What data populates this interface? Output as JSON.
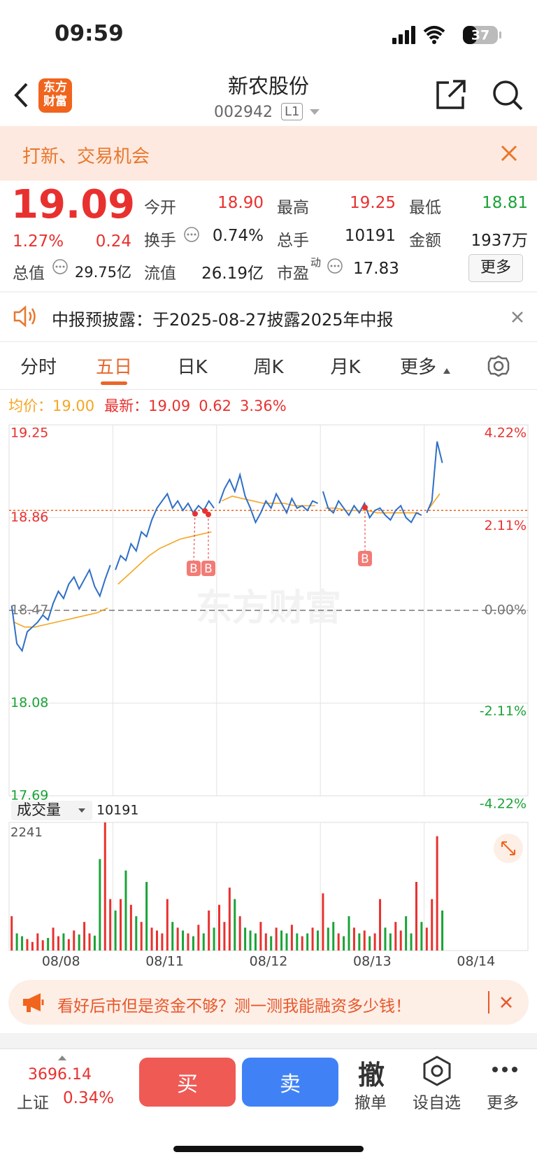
{
  "status_bar": {
    "time": "09:59",
    "battery": "37"
  },
  "header": {
    "logo": [
      "东方",
      "财富"
    ],
    "title": "新农股份",
    "code": "002942",
    "level": "L1"
  },
  "banner": {
    "text": "打新、交易机会"
  },
  "quote": {
    "price": "19.09",
    "change_pct": "1.27%",
    "change": "0.24",
    "fields": [
      {
        "label": "今开",
        "value": "18.90"
      },
      {
        "label": "最高",
        "value": "19.25"
      },
      {
        "label": "最低",
        "value": "18.81"
      },
      {
        "label": "换手",
        "value": "0.74%"
      },
      {
        "label": "总手",
        "value": "10191"
      },
      {
        "label": "金额",
        "value": "1937万"
      },
      {
        "label": "总值",
        "value": "29.75亿"
      },
      {
        "label": "流值",
        "value": "26.19亿"
      },
      {
        "label": "市盈",
        "sup": "动",
        "value": "17.83"
      }
    ],
    "more": "更多"
  },
  "notice": {
    "text": "中报预披露：于2025-08-27披露2025年中报"
  },
  "tabs": {
    "items": [
      "分时",
      "五日",
      "日K",
      "周K",
      "月K",
      "更多"
    ],
    "active": 1
  },
  "legend": {
    "avg": "19.00",
    "last": "19.09",
    "change": "0.62",
    "change_pct": "3.36%"
  },
  "chart_data": [
    {
      "type": "line",
      "categories": [
        "08/08",
        "08/11",
        "08/12",
        "08/13",
        "08/14"
      ],
      "ylim": [
        17.69,
        19.25
      ],
      "yticks": [
        19.25,
        18.86,
        18.47,
        18.08,
        17.69
      ],
      "y2lim": [
        -4.22,
        4.22
      ],
      "y2ticks": [
        {
          "value": 4.22,
          "label": "4.22%"
        },
        {
          "value": 2.11,
          "label": "2.11%"
        },
        {
          "value": 0,
          "label": "0.00%"
        },
        {
          "value": -2.11,
          "label": "-2.11%"
        },
        {
          "value": -4.22,
          "label": "-4.22%"
        }
      ],
      "ref_line": 18.89,
      "ref_color": "#f0641e",
      "watermark": "东方财富",
      "annotations": [
        "B",
        "B",
        "B"
      ],
      "series": [
        {
          "name": "均价：",
          "color": "#f5a623",
          "values": [
            [
              18.42,
              18.4,
              18.4,
              18.41,
              18.42,
              18.43,
              18.44,
              18.45,
              18.46,
              18.48
            ],
            [
              18.58,
              18.62,
              18.66,
              18.7,
              18.73,
              18.75,
              18.77,
              18.78,
              18.79,
              18.8
            ],
            [
              18.93,
              18.95,
              18.94,
              18.93,
              18.92,
              18.92,
              18.92,
              18.91,
              18.91,
              18.91
            ],
            [
              18.9,
              18.9,
              18.89,
              18.89,
              18.89,
              18.88,
              18.88,
              18.88,
              18.88,
              18.88
            ],
            [
              18.9,
              18.96
            ]
          ]
        },
        {
          "name": "最新：",
          "color": "#2f6fc6",
          "values": [
            [
              18.49,
              18.33,
              18.3,
              18.38,
              18.4,
              18.42,
              18.45,
              18.43,
              18.5,
              18.55,
              18.52,
              18.58,
              18.61,
              18.56,
              18.6,
              18.64,
              18.57,
              18.53,
              18.6,
              18.66
            ],
            [
              18.64,
              18.7,
              18.68,
              18.75,
              18.72,
              18.8,
              18.78,
              18.85,
              18.9,
              18.93,
              18.96,
              18.9,
              18.93,
              18.89,
              18.92,
              18.88,
              18.91,
              18.89,
              18.93,
              18.9
            ],
            [
              18.92,
              18.98,
              19.02,
              18.97,
              19.04,
              18.95,
              18.9,
              18.84,
              18.88,
              18.93,
              18.9,
              18.96,
              18.92,
              18.88,
              18.94,
              18.9,
              18.91,
              18.89,
              18.93,
              18.92
            ],
            [
              18.97,
              18.9,
              18.88,
              18.93,
              18.9,
              18.87,
              18.91,
              18.88,
              18.92,
              18.86,
              18.89,
              18.9,
              18.87,
              18.85,
              18.89,
              18.91,
              18.86,
              18.84,
              18.88,
              18.87
            ],
            [
              18.88,
              18.93,
              19.18,
              19.09
            ]
          ]
        }
      ]
    },
    {
      "type": "bar",
      "label": "成交量",
      "total": "10191",
      "ylim": [
        0,
        2241
      ],
      "yticks": [
        2241
      ],
      "up_color": "#e8312f",
      "down_color": "#1aa337",
      "values": [
        [
          600,
          300,
          250,
          200,
          150,
          300,
          180,
          220,
          400,
          250,
          300,
          200,
          350,
          280,
          500,
          300,
          260,
          1600,
          2241,
          900
        ],
        [
          700,
          900,
          1400,
          800,
          600,
          500,
          1200,
          400,
          350,
          300,
          900,
          500,
          400,
          350,
          300,
          250,
          450,
          300,
          700,
          400
        ],
        [
          800,
          500,
          1100,
          900,
          600,
          400,
          350,
          300,
          500,
          300,
          250,
          400,
          350,
          300,
          450,
          300,
          250,
          300,
          400,
          350
        ],
        [
          1000,
          400,
          500,
          300,
          250,
          600,
          400,
          300,
          350,
          250,
          300,
          900,
          400,
          300,
          500,
          350,
          600,
          300,
          1200,
          500
        ],
        [
          400,
          900,
          2000,
          700
        ]
      ]
    }
  ],
  "ad": {
    "text": "看好后市但是资金不够？测一测我能融资多少钱！"
  },
  "bottom": {
    "index_value": "3696.14",
    "index_name": "上证",
    "index_pct": "0.34%",
    "buy": "买",
    "sell": "卖",
    "cancel_icon": "撤",
    "cancel": "撤单",
    "watch": "设自选",
    "more": "更多"
  }
}
